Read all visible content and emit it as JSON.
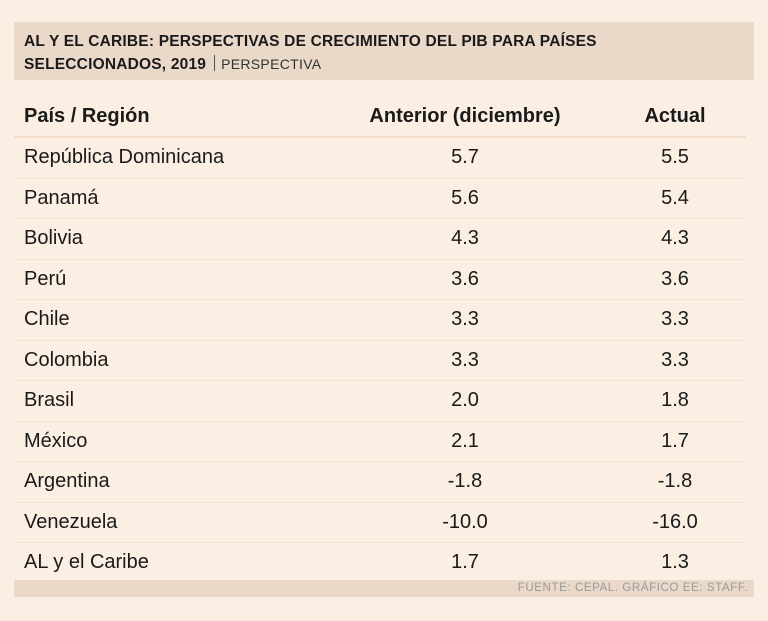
{
  "title": {
    "main_line1": "AL Y EL CARIBE: PERSPECTIVAS DE CRECIMIENTO DEL PIB PARA PAÍSES",
    "main_line2": "SELECCIONADOS, 2019",
    "subtitle": "PERSPECTIVA"
  },
  "chart_data": {
    "type": "table",
    "title": "AL Y EL CARIBE: PERSPECTIVAS DE CRECIMIENTO DEL PIB PARA PAÍSES SELECCIONADOS, 2019",
    "subtitle": "PERSPECTIVA",
    "columns": [
      "País / Región",
      "Anterior (diciembre)",
      "Actual"
    ],
    "rows": [
      {
        "country": "República Dominicana",
        "prev": "5.7",
        "curr": "5.5"
      },
      {
        "country": "Panamá",
        "prev": "5.6",
        "curr": "5.4"
      },
      {
        "country": "Bolivia",
        "prev": "4.3",
        "curr": "4.3"
      },
      {
        "country": "Perú",
        "prev": "3.6",
        "curr": "3.6"
      },
      {
        "country": "Chile",
        "prev": "3.3",
        "curr": "3.3"
      },
      {
        "country": "Colombia",
        "prev": "3.3",
        "curr": "3.3"
      },
      {
        "country": "Brasil",
        "prev": "2.0",
        "curr": "1.8"
      },
      {
        "country": "México",
        "prev": "2.1",
        "curr": "1.7"
      },
      {
        "country": "Argentina",
        "prev": "-1.8",
        "curr": "-1.8"
      },
      {
        "country": "Venezuela",
        "prev": "-10.0",
        "curr": "-16.0"
      },
      {
        "country": "AL y el Caribe",
        "prev": "1.7",
        "curr": "1.3"
      }
    ],
    "source": "FUENTE: CEPAL. GRÁFICO EE: STAFF."
  },
  "colors": {
    "background": "#fbeee2",
    "title_band": "#ead8c9",
    "row_divider": "#f5e2d2"
  }
}
